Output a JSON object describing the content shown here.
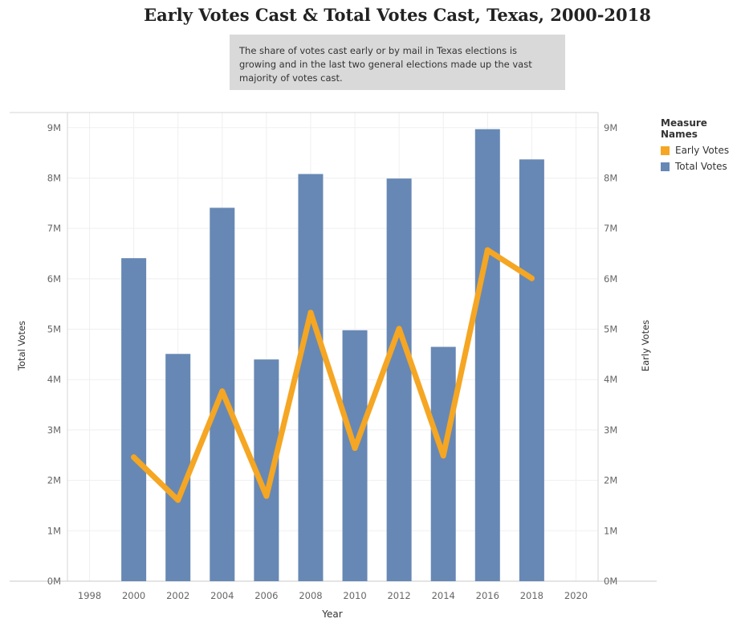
{
  "chart_data": {
    "type": "bar+line",
    "title": "Early Votes Cast & Total Votes Cast, Texas, 2000-2018",
    "annotation": "The share of votes cast early or by mail in Texas elections is growing and in the last two general elections made up the vast majority of votes cast.",
    "xlabel": "Year",
    "ylabel_left": "Total Votes",
    "ylabel_right": "Early Votes",
    "x_ticks": [
      "1998",
      "2000",
      "2002",
      "2004",
      "2006",
      "2008",
      "2010",
      "2012",
      "2014",
      "2016",
      "2018",
      "2020"
    ],
    "xlim": [
      1997,
      2021
    ],
    "y_ticks": [
      "0M",
      "1M",
      "2M",
      "3M",
      "4M",
      "5M",
      "6M",
      "7M",
      "8M",
      "9M"
    ],
    "ylim": [
      0,
      9300000
    ],
    "legend_title": "Measure Names",
    "legend_position": "right",
    "grid": true,
    "x": [
      2000,
      2002,
      2004,
      2006,
      2008,
      2010,
      2012,
      2014,
      2016,
      2018
    ],
    "series": [
      {
        "name": "Early Votes",
        "kind": "line",
        "axis": "right",
        "color": "#f5a623",
        "values": [
          2460000,
          1610000,
          3770000,
          1690000,
          5330000,
          2640000,
          5010000,
          2490000,
          6570000,
          6010000
        ]
      },
      {
        "name": "Total Votes",
        "kind": "bar",
        "axis": "left",
        "color": "#6788b4",
        "values": [
          6410000,
          4510000,
          7410000,
          4400000,
          8080000,
          4980000,
          7990000,
          4650000,
          8970000,
          8370000
        ]
      }
    ]
  }
}
